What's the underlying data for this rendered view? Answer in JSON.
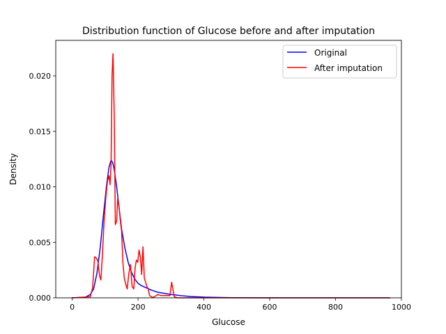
{
  "chart_data": {
    "type": "line",
    "title": "Distribution function of Glucose before and after imputation",
    "xlabel": "Glucose",
    "ylabel": "Density",
    "xlim": [
      -50,
      1000
    ],
    "ylim": [
      0,
      0.0232
    ],
    "xticks": [
      0,
      200,
      400,
      600,
      800,
      1000
    ],
    "xtick_labels": [
      "0",
      "200",
      "400",
      "600",
      "800",
      "1000"
    ],
    "yticks": [
      0,
      0.005,
      0.01,
      0.015,
      0.02
    ],
    "ytick_labels": [
      "0.000",
      "0.005",
      "0.010",
      "0.015",
      "0.020"
    ],
    "grid": false,
    "legend_position": "top-right",
    "series": [
      {
        "name": "Original",
        "color": "#0000ff",
        "x": [
          0,
          40,
          55,
          65,
          75,
          85,
          95,
          105,
          112,
          118,
          123,
          128,
          135,
          142,
          150,
          160,
          170,
          180,
          190,
          200,
          210,
          225,
          240,
          260,
          280,
          300,
          330,
          360,
          400,
          450,
          500,
          600,
          700,
          800,
          965
        ],
        "y": [
          0,
          5e-05,
          0.0003,
          0.0008,
          0.0022,
          0.0045,
          0.0075,
          0.0103,
          0.0118,
          0.0124,
          0.0122,
          0.0115,
          0.01,
          0.0082,
          0.0062,
          0.0045,
          0.0032,
          0.0023,
          0.0017,
          0.0013,
          0.0011,
          0.0009,
          0.0007,
          0.0005,
          0.0004,
          0.0003,
          0.0002,
          0.00012,
          6e-05,
          3e-05,
          1e-05,
          0,
          0,
          0,
          0
        ]
      },
      {
        "name": "After imputation",
        "color": "#ff0000",
        "x": [
          0,
          55,
          62,
          68,
          73,
          78,
          83,
          87,
          92,
          97,
          102,
          107,
          112,
          115,
          118,
          121,
          124,
          128,
          131,
          135,
          138,
          142,
          146,
          150,
          154,
          158,
          162,
          167,
          172,
          177,
          182,
          187,
          191,
          195,
          199,
          203,
          207,
          211,
          215,
          219,
          223,
          227,
          231,
          235,
          240,
          245,
          250,
          260,
          270,
          280,
          290,
          297,
          302,
          305,
          310,
          320,
          340,
          380,
          500,
          965
        ],
        "y": [
          0,
          0.0001,
          0.0009,
          0.0037,
          0.0036,
          0.0033,
          0.002,
          0.0016,
          0.004,
          0.007,
          0.009,
          0.0105,
          0.011,
          0.0102,
          0.012,
          0.02,
          0.022,
          0.016,
          0.0066,
          0.0069,
          0.0089,
          0.0083,
          0.007,
          0.006,
          0.0032,
          0.0018,
          0.0013,
          0.0008,
          0.0022,
          0.003,
          0.001,
          0.0008,
          0.0027,
          0.0034,
          0.0032,
          0.0043,
          0.0037,
          0.0021,
          0.0046,
          0.0018,
          0.0014,
          0.001,
          0.0008,
          0.0002,
          0.0001,
          5e-05,
          0.0001,
          0.0003,
          0.0002,
          0.0002,
          0.0002,
          0.0002,
          0.0014,
          0.0009,
          0.0001,
          0,
          0,
          0,
          0,
          0
        ]
      }
    ]
  }
}
